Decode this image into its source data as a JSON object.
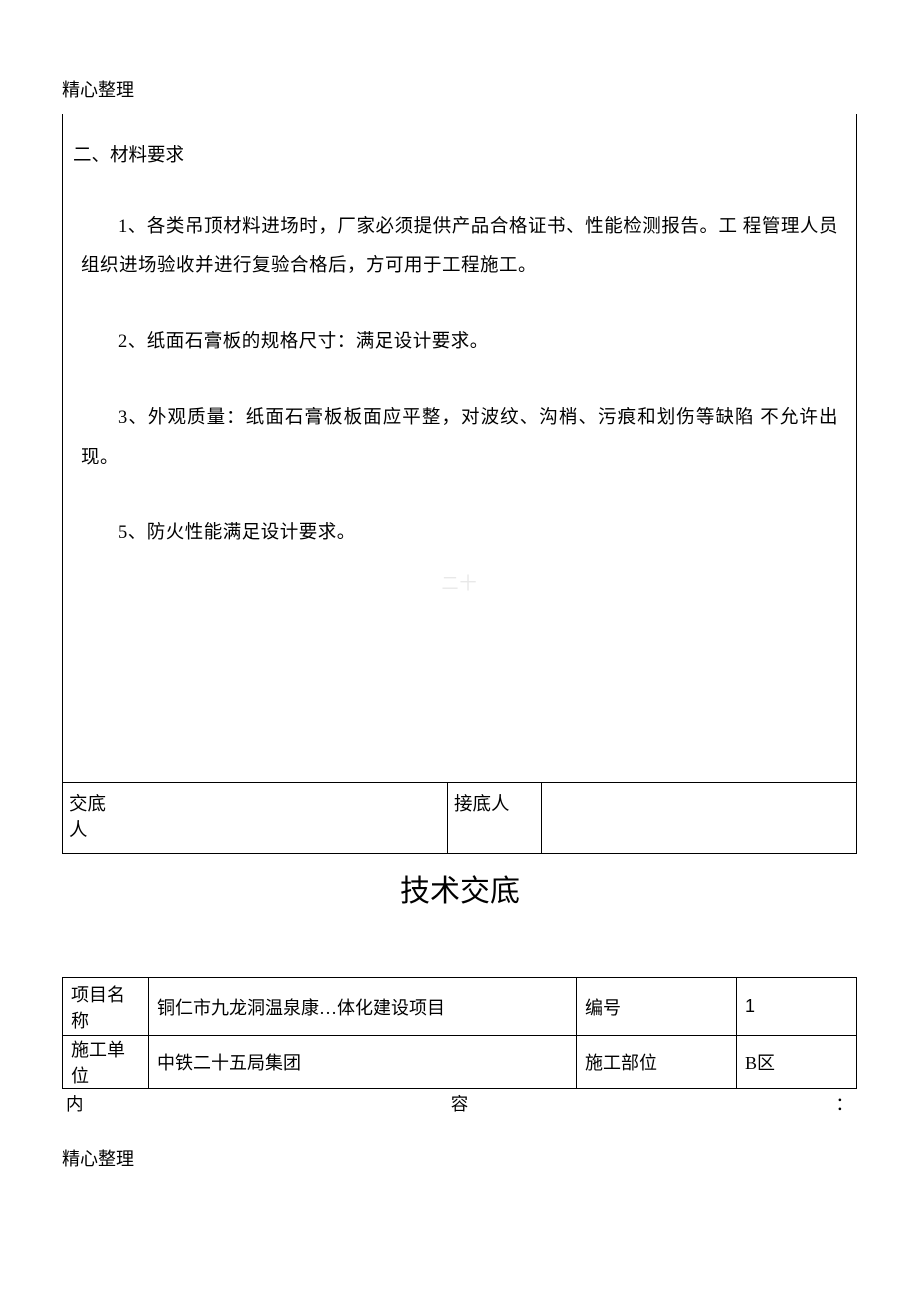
{
  "header": "精心整理",
  "section_title": "二、材料要求",
  "paragraphs": [
    "1、各类吊顶材料进场时，厂家必须提供产品合格证书、性能检测报告。工 程管理人员组织进场验收并进行复验合格后，方可用于工程施工。",
    "2、纸面石膏板的规格尺寸：满足设计要求。",
    "3、外观质量：纸面石膏板板面应平整，对波纹、沟梢、污痕和划伤等缺陷 不允许出现。",
    "5、防火性能满足设计要求。"
  ],
  "watermark": "二十",
  "sign_labels": {
    "left": "交底人",
    "right": "接底人"
  },
  "doc_title": "技术交底",
  "info_table": {
    "row1": {
      "label1": "项目名称",
      "value1": "铜仁市九龙洞温泉康…体化建设项目",
      "label2": "编号",
      "value2": "1"
    },
    "row2": {
      "label1": "施工单位",
      "value1": "中铁二十五局集团",
      "label2": "施工部位",
      "value2": "B区"
    }
  },
  "content_line": {
    "c1": "内",
    "c2": "容",
    "c3": "："
  },
  "footer": "精心整理"
}
